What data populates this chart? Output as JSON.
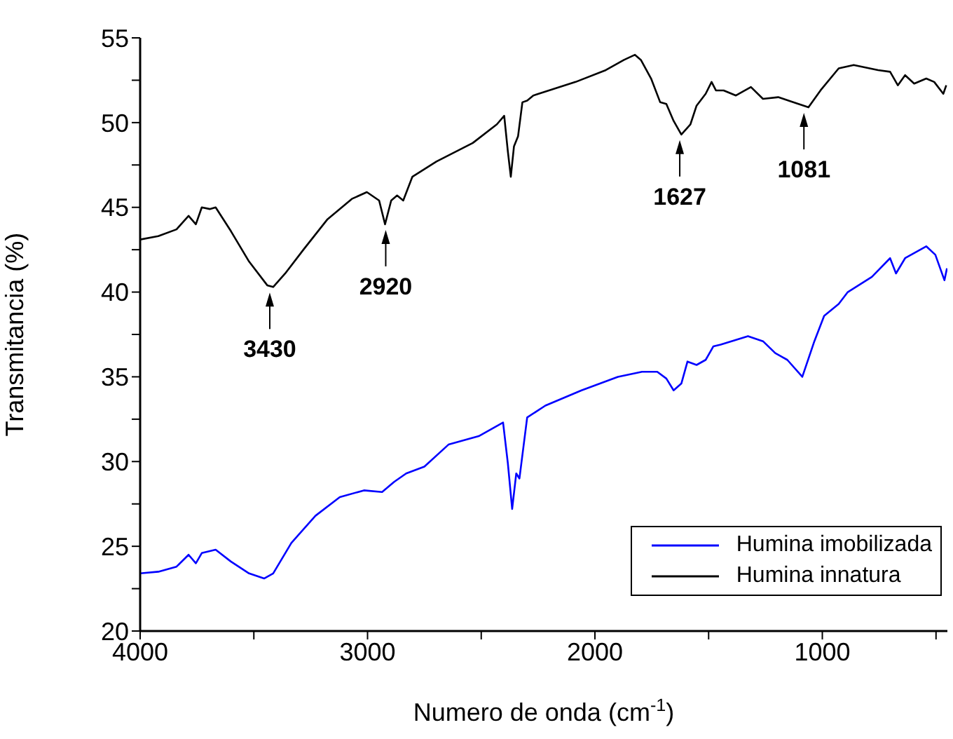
{
  "chart_data": {
    "type": "line",
    "xlabel": "Numero de onda (cm$^{-1}$)",
    "ylabel": "Transmitancia (%)",
    "xlim": [
      4000,
      450
    ],
    "xticks": [
      4000,
      {
        "value": 3500,
        "label": null
      },
      3000,
      {
        "value": 2500,
        "label": null
      },
      2000,
      {
        "value": 1500,
        "label": null
      },
      1000,
      {
        "value": 500,
        "label": null
      }
    ],
    "ylim": [
      20,
      55
    ],
    "yticks": [
      20,
      {
        "value": 22.5,
        "label": null
      },
      25,
      {
        "value": 27.5,
        "label": null
      },
      30,
      {
        "value": 32.5,
        "label": null
      },
      35,
      {
        "value": 37.5,
        "label": null
      },
      40,
      {
        "value": 42.5,
        "label": null
      },
      45,
      {
        "value": 47.5,
        "label": null
      },
      50,
      {
        "value": 52.5,
        "label": null
      },
      55
    ],
    "legend": "bottom right",
    "marker": "none",
    "line_style": "solid",
    "series": [
      {
        "name": "Humina imobilizada",
        "color": "#0000ff",
        "x": [
          4000,
          3920,
          3840,
          3787,
          3755,
          3729,
          3668,
          3601,
          3521,
          3455,
          3415,
          3335,
          3229,
          3122,
          3016,
          2936,
          2883,
          2830,
          2750,
          2644,
          2511,
          2404,
          2383,
          2364,
          2346,
          2332,
          2298,
          2218,
          2059,
          1899,
          1793,
          1726,
          1686,
          1654,
          1620,
          1593,
          1553,
          1513,
          1479,
          1447,
          1327,
          1261,
          1207,
          1154,
          1088,
          1035,
          992,
          928,
          888,
          782,
          702,
          676,
          636,
          543,
          503,
          463,
          452
        ],
        "values": [
          23.4,
          23.5,
          23.8,
          24.5,
          24.0,
          24.6,
          24.8,
          24.1,
          23.4,
          23.1,
          23.4,
          25.2,
          26.8,
          27.9,
          28.3,
          28.2,
          28.8,
          29.3,
          29.7,
          31.0,
          31.5,
          32.3,
          29.9,
          27.2,
          29.3,
          29.0,
          32.6,
          33.3,
          34.2,
          35.0,
          35.3,
          35.3,
          34.9,
          34.2,
          34.6,
          35.9,
          35.7,
          36.0,
          36.8,
          36.9,
          37.4,
          37.1,
          36.4,
          36.0,
          35.0,
          37.1,
          38.6,
          39.3,
          40.0,
          40.9,
          42.0,
          41.1,
          42.0,
          42.7,
          42.2,
          40.7,
          41.4
        ]
      },
      {
        "name": "Humina innatura",
        "color": "#000000",
        "x": [
          4000,
          3920,
          3840,
          3787,
          3755,
          3729,
          3694,
          3668,
          3601,
          3521,
          3441,
          3415,
          3362,
          3282,
          3176,
          3069,
          3003,
          2949,
          2923,
          2896,
          2870,
          2843,
          2803,
          2697,
          2537,
          2431,
          2399,
          2383,
          2370,
          2356,
          2338,
          2319,
          2298,
          2271,
          2085,
          1952,
          1872,
          1824,
          1798,
          1753,
          1713,
          1686,
          1654,
          1620,
          1580,
          1553,
          1513,
          1487,
          1468,
          1434,
          1380,
          1314,
          1261,
          1194,
          1128,
          1061,
          1008,
          928,
          862,
          755,
          702,
          668,
          636,
          596,
          543,
          508,
          468,
          455
        ],
        "values": [
          43.1,
          43.3,
          43.7,
          44.5,
          44.0,
          45.0,
          44.9,
          45.0,
          43.6,
          41.8,
          40.4,
          40.3,
          41.1,
          42.5,
          44.3,
          45.5,
          45.9,
          45.4,
          44.0,
          45.4,
          45.7,
          45.4,
          46.8,
          47.7,
          48.8,
          49.9,
          50.4,
          48.3,
          46.8,
          48.6,
          49.2,
          51.2,
          51.3,
          51.6,
          52.4,
          53.1,
          53.7,
          54.0,
          53.7,
          52.6,
          51.2,
          51.1,
          50.1,
          49.3,
          49.9,
          51.0,
          51.7,
          52.4,
          51.9,
          51.9,
          51.6,
          52.1,
          51.4,
          51.5,
          51.2,
          50.9,
          51.9,
          53.2,
          53.4,
          53.1,
          53.0,
          52.2,
          52.8,
          52.3,
          52.6,
          52.4,
          51.7,
          52.2
        ]
      }
    ],
    "annotations": [
      {
        "text": "3430",
        "x": 3430,
        "y": 40.3
      },
      {
        "text": "2920",
        "x": 2920,
        "y": 44.0
      },
      {
        "text": "1627",
        "x": 1627,
        "y": 49.3
      },
      {
        "text": "1081",
        "x": 1081,
        "y": 50.9
      }
    ]
  }
}
